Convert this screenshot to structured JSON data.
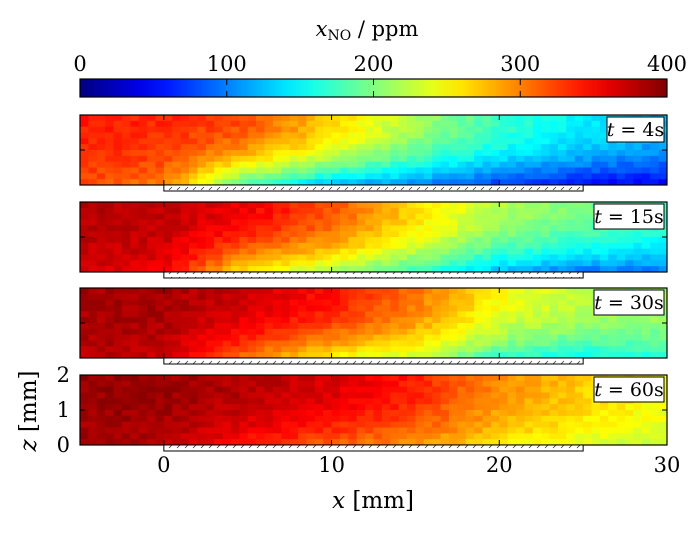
{
  "chart_data": {
    "type": "heatmap",
    "colorbar": {
      "label": "x",
      "label_sub": "NO",
      "label_unit": " / ppm",
      "ticks": [
        0,
        100,
        200,
        300,
        400
      ],
      "range": [
        0,
        400
      ],
      "colormap": "jet"
    },
    "xlabel": "x",
    "xlabel_unit": " [mm]",
    "ylabel": "z",
    "ylabel_unit": " [mm]",
    "xlim": [
      -5,
      30
    ],
    "ylim": [
      0,
      2
    ],
    "xticks": [
      0,
      10,
      20,
      30
    ],
    "yticks": [
      0,
      1,
      2
    ],
    "substrate": {
      "x_start": 0,
      "x_end": 25
    },
    "panels": [
      {
        "label": "t = 4s",
        "t_label": "t",
        "t_value": " = 4s",
        "upstream_ppm": 340,
        "field_ppm": [
          {
            "x": -5,
            "z_wall": 320,
            "z_top": 340
          },
          {
            "x": 0,
            "z_wall": 300,
            "z_top": 335
          },
          {
            "x": 5,
            "z_wall": 170,
            "z_top": 320
          },
          {
            "x": 10,
            "z_wall": 120,
            "z_top": 270
          },
          {
            "x": 15,
            "z_wall": 100,
            "z_top": 215
          },
          {
            "x": 20,
            "z_wall": 70,
            "z_top": 175
          },
          {
            "x": 25,
            "z_wall": 50,
            "z_top": 145
          },
          {
            "x": 30,
            "z_wall": 40,
            "z_top": 125
          }
        ]
      },
      {
        "label": "t = 15s",
        "t_label": "t",
        "t_value": " = 15s",
        "upstream_ppm": 380,
        "field_ppm": [
          {
            "x": -5,
            "z_wall": 370,
            "z_top": 380
          },
          {
            "x": 0,
            "z_wall": 355,
            "z_top": 375
          },
          {
            "x": 5,
            "z_wall": 250,
            "z_top": 355
          },
          {
            "x": 10,
            "z_wall": 210,
            "z_top": 320
          },
          {
            "x": 15,
            "z_wall": 170,
            "z_top": 265
          },
          {
            "x": 20,
            "z_wall": 120,
            "z_top": 220
          },
          {
            "x": 25,
            "z_wall": 95,
            "z_top": 195
          },
          {
            "x": 30,
            "z_wall": 95,
            "z_top": 175
          }
        ]
      },
      {
        "label": "t = 30s",
        "t_label": "t",
        "t_value": " = 30s",
        "upstream_ppm": 385,
        "field_ppm": [
          {
            "x": -5,
            "z_wall": 380,
            "z_top": 385
          },
          {
            "x": 0,
            "z_wall": 370,
            "z_top": 385
          },
          {
            "x": 5,
            "z_wall": 300,
            "z_top": 370
          },
          {
            "x": 10,
            "z_wall": 250,
            "z_top": 345
          },
          {
            "x": 15,
            "z_wall": 225,
            "z_top": 305
          },
          {
            "x": 20,
            "z_wall": 170,
            "z_top": 250
          },
          {
            "x": 25,
            "z_wall": 150,
            "z_top": 225
          },
          {
            "x": 30,
            "z_wall": 165,
            "z_top": 215
          }
        ]
      },
      {
        "label": "t = 60s",
        "t_label": "t",
        "t_value": " = 60s",
        "upstream_ppm": 390,
        "field_ppm": [
          {
            "x": -5,
            "z_wall": 385,
            "z_top": 390
          },
          {
            "x": 0,
            "z_wall": 380,
            "z_top": 390
          },
          {
            "x": 5,
            "z_wall": 340,
            "z_top": 380
          },
          {
            "x": 10,
            "z_wall": 310,
            "z_top": 365
          },
          {
            "x": 15,
            "z_wall": 290,
            "z_top": 340
          },
          {
            "x": 20,
            "z_wall": 260,
            "z_top": 295
          },
          {
            "x": 25,
            "z_wall": 235,
            "z_top": 270
          },
          {
            "x": 30,
            "z_wall": 225,
            "z_top": 250
          }
        ]
      }
    ]
  }
}
